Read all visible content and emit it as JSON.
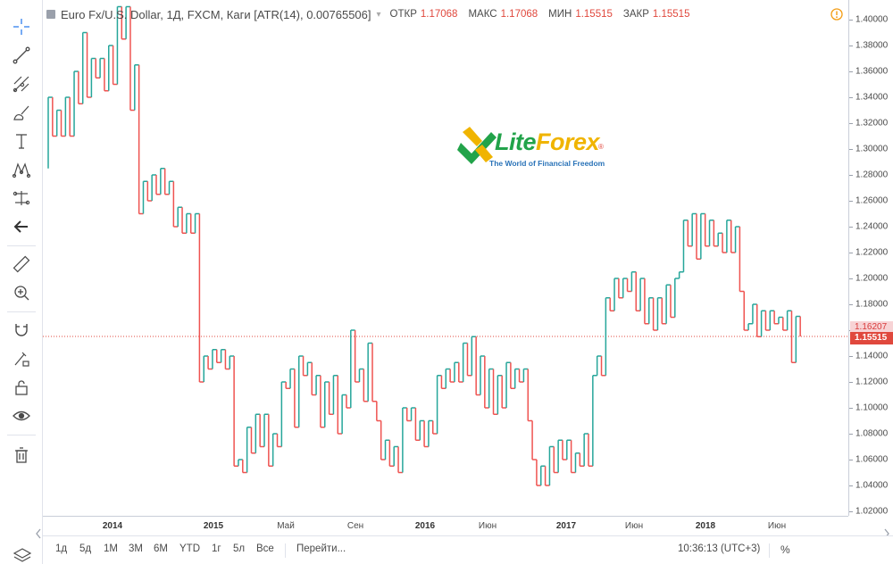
{
  "header": {
    "title": "Euro Fx/U.S. Dollar, 1Д, FXCM, Каги [ATR(14), 0.00765506]",
    "ohlc": [
      {
        "label": "ОТКР",
        "value": "1.17068"
      },
      {
        "label": "МАКС",
        "value": "1.17068"
      },
      {
        "label": "МИН",
        "value": "1.15515"
      },
      {
        "label": "ЗАКР",
        "value": "1.15515"
      }
    ]
  },
  "logo": {
    "brand_a": "Lite",
    "brand_b": "Forex",
    "tagline": "The World of Financial Freedom",
    "reg": "®"
  },
  "toolbar": {
    "icons": [
      "crosshair-icon",
      "trend-line-icon",
      "pitchfork-icon",
      "brush-icon",
      "text-icon",
      "pattern-icon",
      "prediction-icon",
      "back-arrow-icon",
      "ruler-icon",
      "zoom-in-icon",
      "magnet-icon",
      "lock-pencil-icon",
      "unlock-icon",
      "eye-icon",
      "trash-icon"
    ]
  },
  "bottombar": {
    "ranges": [
      "1д",
      "5д",
      "1М",
      "3М",
      "6М",
      "YTD",
      "1г",
      "5л",
      "Все"
    ],
    "goto": "Перейти...",
    "time": "10:36:13 (UTC+3)",
    "percent": "%"
  },
  "colors": {
    "up": "#26a69a",
    "down": "#ef5350",
    "price_line": "#e0483d"
  },
  "chart_data": {
    "type": "kagi",
    "symbol": "Euro Fx/U.S. Dollar",
    "ylim": [
      1.02,
      1.4
    ],
    "y_ticks": [
      "1.40000",
      "1.38000",
      "1.36000",
      "1.34000",
      "1.32000",
      "1.30000",
      "1.28000",
      "1.26000",
      "1.24000",
      "1.22000",
      "1.20000",
      "1.18000",
      "1.16000",
      "1.14000",
      "1.12000",
      "1.10000",
      "1.08000",
      "1.06000",
      "1.04000",
      "1.02000"
    ],
    "x_ticks": [
      {
        "label": "2014",
        "bold": true
      },
      {
        "label": "2015",
        "bold": true
      },
      {
        "label": "Май",
        "bold": false
      },
      {
        "label": "Сен",
        "bold": false
      },
      {
        "label": "2016",
        "bold": true
      },
      {
        "label": "Июн",
        "bold": false
      },
      {
        "label": "2017",
        "bold": true
      },
      {
        "label": "Июн",
        "bold": false
      },
      {
        "label": "2018",
        "bold": true
      },
      {
        "label": "Июн",
        "bold": false
      }
    ],
    "last_open_label": "1.16207",
    "last_price": 1.15515,
    "last_price_label": "1.15515",
    "kagi_reversals": [
      1.285,
      1.34,
      1.31,
      1.33,
      1.31,
      1.34,
      1.31,
      1.36,
      1.335,
      1.39,
      1.34,
      1.37,
      1.355,
      1.37,
      1.345,
      1.38,
      1.35,
      1.41,
      1.385,
      1.41,
      1.33,
      1.365,
      1.25,
      1.275,
      1.26,
      1.28,
      1.265,
      1.285,
      1.265,
      1.275,
      1.24,
      1.255,
      1.235,
      1.25,
      1.235,
      1.25,
      1.12,
      1.14,
      1.13,
      1.145,
      1.135,
      1.145,
      1.13,
      1.14,
      1.055,
      1.06,
      1.05,
      1.085,
      1.065,
      1.095,
      1.07,
      1.095,
      1.055,
      1.08,
      1.07,
      1.12,
      1.115,
      1.13,
      1.085,
      1.14,
      1.125,
      1.135,
      1.11,
      1.125,
      1.085,
      1.12,
      1.095,
      1.125,
      1.08,
      1.11,
      1.1,
      1.16,
      1.12,
      1.13,
      1.105,
      1.15,
      1.105,
      1.09,
      1.06,
      1.075,
      1.055,
      1.07,
      1.05,
      1.1,
      1.09,
      1.1,
      1.075,
      1.09,
      1.07,
      1.09,
      1.08,
      1.125,
      1.115,
      1.13,
      1.12,
      1.135,
      1.12,
      1.15,
      1.125,
      1.155,
      1.11,
      1.14,
      1.1,
      1.13,
      1.095,
      1.125,
      1.1,
      1.135,
      1.115,
      1.13,
      1.12,
      1.13,
      1.09,
      1.06,
      1.04,
      1.055,
      1.04,
      1.07,
      1.05,
      1.075,
      1.06,
      1.075,
      1.05,
      1.065,
      1.055,
      1.08,
      1.055,
      1.125,
      1.14,
      1.125,
      1.185,
      1.175,
      1.2,
      1.185,
      1.2,
      1.19,
      1.205,
      1.175,
      1.2,
      1.165,
      1.185,
      1.16,
      1.185,
      1.165,
      1.195,
      1.17,
      1.2,
      1.205,
      1.245,
      1.225,
      1.25,
      1.215,
      1.25,
      1.225,
      1.245,
      1.225,
      1.235,
      1.22,
      1.245,
      1.22,
      1.24,
      1.19,
      1.16,
      1.165,
      1.18,
      1.155,
      1.175,
      1.16,
      1.175,
      1.165,
      1.17,
      1.16,
      1.175,
      1.135,
      1.17068,
      1.15515
    ]
  }
}
